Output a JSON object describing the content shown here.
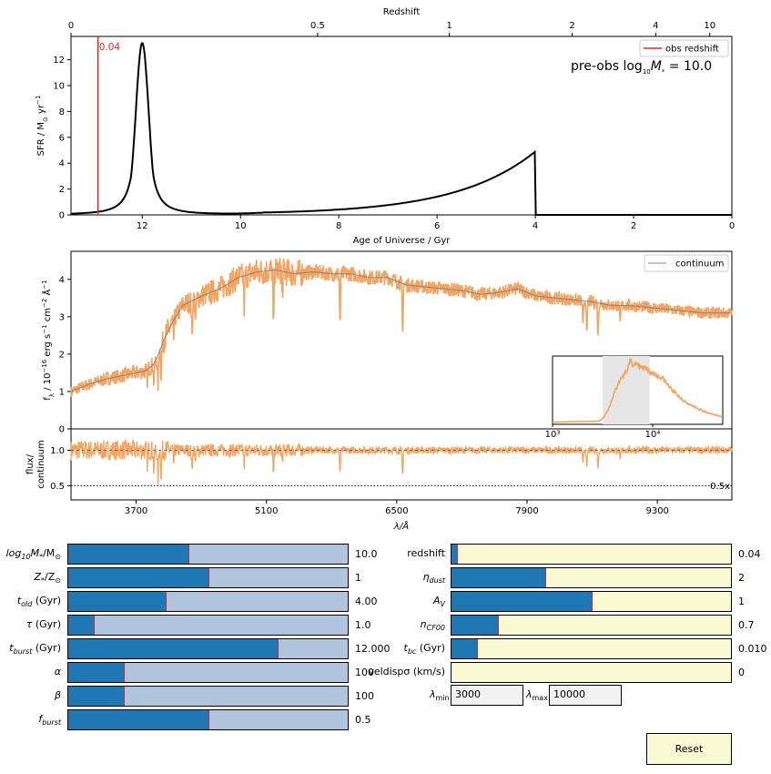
{
  "colors": {
    "sfr_line": "#000000",
    "obs_line": "#e8281e",
    "spectrum": "#f4a460",
    "continuum": "#7f7f7f",
    "slider_fill": "#1f77b4",
    "slider_bg_left": "#b0c4de",
    "slider_bg_right": "#fafad2",
    "textbox_bg": "#f2f2f2",
    "inset_shade": "#e6e6e6"
  },
  "chart_data": [
    {
      "type": "line",
      "name": "sfh",
      "xlabel": "Age of Universe / Gyr",
      "ylabel": "SFR / M$_\\odot$ yr$^{-1}$",
      "ylabel_text": "SFR / M",
      "ylabel_sub": "⊙",
      "ylabel_tail": " yr",
      "ylabel_sup": "−1",
      "top_xlabel": "Redshift",
      "xlim": [
        13.45,
        0
      ],
      "ylim": [
        0,
        13.8
      ],
      "xticks": [
        12,
        10,
        8,
        6,
        4,
        2,
        0
      ],
      "yticks": [
        0,
        2,
        4,
        6,
        8,
        10,
        12
      ],
      "top_ticks": [
        {
          "label": "0",
          "age": 13.45
        },
        {
          "label": "0.5",
          "age": 8.43
        },
        {
          "label": "1",
          "age": 5.75
        },
        {
          "label": "2",
          "age": 3.25
        },
        {
          "label": "4",
          "age": 1.55
        },
        {
          "label": "10",
          "age": 0.45
        }
      ],
      "burst": {
        "age_center": 12.0,
        "peak": 13.3,
        "width": 0.13
      },
      "old": {
        "age_start": 4.0,
        "peak": 4.9,
        "tau": 1.0
      },
      "obs_line_age": 12.9,
      "obs_label": "0.04",
      "legend": [
        {
          "label": "obs redshift",
          "color": "#e8281e"
        }
      ],
      "annotation": "pre-obs log",
      "annotation_sub": "10",
      "annotation_mid": "M",
      "annotation_sub2": "*",
      "annotation_tail": " = 10.0",
      "grid": false,
      "legend_position": "upper-right"
    },
    {
      "type": "line",
      "name": "spectrum",
      "ylabel": "f$_\\lambda$ / 10$^{-16}$ erg s$^{-1}$ cm$^{-2}$ Å$^{-1}$",
      "ylabel_text": "f",
      "ylabel_sub": "λ",
      "ylabel_mid": " / 10",
      "ylabel_sup": "−16",
      "ylabel_mid2": " erg s",
      "ylabel_sup2": "−1",
      "ylabel_mid3": " cm",
      "ylabel_sup3": "−2",
      "ylabel_mid4": " Å",
      "ylabel_sup4": "−1",
      "xlim": [
        3000,
        10100
      ],
      "ylim": [
        0,
        4.75
      ],
      "yticks": [
        0,
        1,
        2,
        3,
        4
      ],
      "legend": [
        {
          "label": "continuum",
          "color": "#b0b0b0"
        }
      ],
      "legend_position": "upper-right",
      "continuum_points": [
        [
          3000,
          1.0
        ],
        [
          3200,
          1.2
        ],
        [
          3400,
          1.35
        ],
        [
          3600,
          1.45
        ],
        [
          3800,
          1.55
        ],
        [
          3900,
          1.75
        ],
        [
          4000,
          2.4
        ],
        [
          4100,
          2.9
        ],
        [
          4200,
          3.3
        ],
        [
          4400,
          3.55
        ],
        [
          4600,
          3.75
        ],
        [
          4800,
          4.05
        ],
        [
          5000,
          4.2
        ],
        [
          5200,
          4.25
        ],
        [
          5400,
          4.15
        ],
        [
          5600,
          4.2
        ],
        [
          5800,
          4.15
        ],
        [
          6000,
          4.15
        ],
        [
          6200,
          4.05
        ],
        [
          6400,
          4.05
        ],
        [
          6600,
          3.85
        ],
        [
          6800,
          3.8
        ],
        [
          7000,
          3.75
        ],
        [
          7200,
          3.7
        ],
        [
          7400,
          3.6
        ],
        [
          7600,
          3.65
        ],
        [
          7800,
          3.75
        ],
        [
          8000,
          3.55
        ],
        [
          8200,
          3.5
        ],
        [
          8400,
          3.45
        ],
        [
          8600,
          3.4
        ],
        [
          8800,
          3.3
        ],
        [
          9000,
          3.3
        ],
        [
          9200,
          3.25
        ],
        [
          9400,
          3.2
        ],
        [
          9600,
          3.15
        ],
        [
          9800,
          3.1
        ],
        [
          10100,
          3.1
        ]
      ],
      "absorption_lines": [
        [
          3820,
          0.5
        ],
        [
          3890,
          0.8
        ],
        [
          3934,
          1.2
        ],
        [
          3968,
          1.0
        ],
        [
          4101,
          0.6
        ],
        [
          4300,
          0.8
        ],
        [
          4340,
          0.5
        ],
        [
          4861,
          0.6
        ],
        [
          5175,
          1.1
        ],
        [
          5270,
          0.5
        ],
        [
          5890,
          0.9
        ],
        [
          6563,
          1.0
        ],
        [
          8500,
          0.6
        ],
        [
          8542,
          0.8
        ],
        [
          8662,
          0.7
        ],
        [
          8900,
          0.5
        ]
      ],
      "inset": {
        "xlim_log": [
          3.0,
          4.7
        ],
        "shade": [
          3.5,
          3.97
        ],
        "tick_labels": [
          "10³",
          "10⁴"
        ]
      }
    },
    {
      "type": "line",
      "name": "residual",
      "xlabel": "λ/Å",
      "ylabel": "flux/ continuum",
      "ylabel_line1": "flux/",
      "ylabel_line2": "continuum",
      "xlim": [
        3000,
        10100
      ],
      "ylim": [
        0.3,
        1.3
      ],
      "xticks": [
        3700,
        5100,
        6500,
        7900,
        9300
      ],
      "yticks": [
        0.5,
        1.0
      ],
      "ref_line": 0.5,
      "ref_label": "0.5x"
    }
  ],
  "sliders_left": [
    {
      "label": "log",
      "label_sub": "10",
      "label_mid": "M",
      "label_sub2": "*",
      "label_tail": "/M",
      "label_sub3": "⊙",
      "value_text": "10.0",
      "fraction": 0.43
    },
    {
      "label": "Z",
      "label_sub": "*",
      "label_tail": "/Z",
      "label_sub3": "⊙",
      "value_text": "1",
      "fraction": 0.5
    },
    {
      "label": "t",
      "label_sub": "old",
      "label_tail": " (Gyr)",
      "value_text": "4.00",
      "fraction": 0.35
    },
    {
      "label": "τ",
      "label_tail": " (Gyr)",
      "value_text": "1.0",
      "fraction": 0.09
    },
    {
      "label": "t",
      "label_sub": "burst",
      "label_tail": " (Gyr)",
      "value_text": "12.000",
      "fraction": 0.75
    },
    {
      "label": "α",
      "value_text": "100",
      "fraction": 0.2
    },
    {
      "label": "β",
      "value_text": "100",
      "fraction": 0.2
    },
    {
      "label": "f",
      "label_sub": "burst",
      "value_text": "0.5",
      "fraction": 0.5
    }
  ],
  "sliders_right": [
    {
      "label": "redshift",
      "value_text": "0.04",
      "fraction": 0.02
    },
    {
      "label": "η",
      "label_sub": "dust",
      "value_text": "2",
      "fraction": 0.335
    },
    {
      "label": "A",
      "label_sub": "V",
      "value_text": "1",
      "fraction": 0.5
    },
    {
      "label": "n",
      "label_sub": "CF00",
      "value_text": "0.7",
      "fraction": 0.165
    },
    {
      "label": "t",
      "label_sub": "bc",
      "label_tail": " (Gyr)",
      "value_text": "0.010",
      "fraction": 0.09
    },
    {
      "label": "veldispσ (km/s)",
      "value_text": "0",
      "fraction": 0.0
    }
  ],
  "textboxes": {
    "lmin_label": "λ",
    "lmin_sub": "min",
    "lmin_value": "3000",
    "lmax_label": "λ",
    "lmax_sub": "max",
    "lmax_value": "10000"
  },
  "reset_label": "Reset"
}
